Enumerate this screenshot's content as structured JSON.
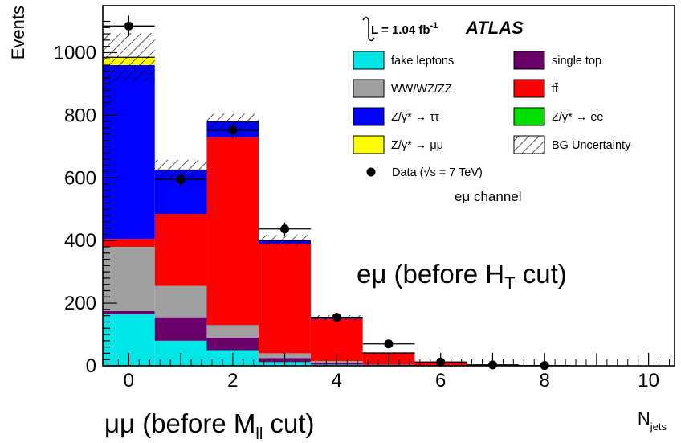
{
  "chart_data": {
    "type": "bar",
    "stacked": true,
    "x": [
      0,
      1,
      2,
      3,
      4,
      5,
      6,
      7,
      8,
      9,
      10
    ],
    "xlim": [
      -0.5,
      10.5
    ],
    "ylim": [
      0,
      1150
    ],
    "xticks": [
      "0",
      "2",
      "4",
      "6",
      "8",
      "10"
    ],
    "yticks": [
      "0",
      "200",
      "400",
      "600",
      "800",
      "1000"
    ],
    "xlabel": "N_jets",
    "ylabel": "Events",
    "series": [
      {
        "name": "fake leptons",
        "color": "#00e5e5",
        "values": [
          165,
          80,
          50,
          12,
          4,
          2,
          1,
          0,
          0,
          0,
          0
        ]
      },
      {
        "name": "single top",
        "color": "#6a006a",
        "values": [
          10,
          75,
          40,
          13,
          6,
          2,
          1,
          0,
          0,
          0,
          0
        ]
      },
      {
        "name": "WW/WZ/ZZ",
        "color": "#a0a0a0",
        "values": [
          205,
          100,
          40,
          15,
          5,
          1,
          0,
          0,
          0,
          0,
          0
        ]
      },
      {
        "name": "tt̄",
        "color": "#ff0000",
        "values": [
          25,
          230,
          600,
          350,
          135,
          35,
          10,
          2,
          0,
          0,
          0
        ]
      },
      {
        "name": "Z/γ* → ee",
        "color": "#00dd00",
        "values": [
          0,
          0,
          0,
          0,
          0,
          0,
          0,
          0,
          0,
          0,
          0
        ]
      },
      {
        "name": "Z/γ* → ττ",
        "color": "#0000ff",
        "values": [
          555,
          140,
          50,
          10,
          3,
          1,
          0,
          0,
          0,
          0,
          0
        ]
      },
      {
        "name": "Z/γ* → μμ",
        "color": "#ffff00",
        "values": [
          25,
          0,
          0,
          0,
          0,
          0,
          0,
          0,
          0,
          0,
          0
        ]
      }
    ],
    "bg_uncertainty": [
      155,
      65,
      50,
      35,
      18,
      5,
      2,
      1,
      0,
      0,
      0
    ],
    "data": {
      "name": "Data (√s = 7 TeV)",
      "x": [
        0,
        1,
        2,
        3,
        4,
        5,
        6,
        7,
        8
      ],
      "y": [
        1085,
        595,
        752,
        437,
        155,
        70,
        12,
        3,
        1
      ]
    },
    "legend": {
      "lumi": "L = 1.04 fb",
      "lumi_sup": "-1",
      "experiment": "ATLAS",
      "left": [
        {
          "label": "fake leptons",
          "color": "#00e5e5"
        },
        {
          "label": "WW/WZ/ZZ",
          "color": "#a0a0a0"
        },
        {
          "label": "Z/γ* → ττ",
          "color": "#0000ff"
        },
        {
          "label": "Z/γ* →  μμ",
          "color": "#ffff00"
        }
      ],
      "right": [
        {
          "label": "single top",
          "color": "#6a006a"
        },
        {
          "label": "tt̄",
          "color": "#ff0000"
        },
        {
          "label": "Z/γ* → ee",
          "color": "#00dd00"
        },
        {
          "label": "BG Uncertainty",
          "color": "hatch"
        }
      ],
      "data_label": "Data (√s = 7 TeV)",
      "channel": "eμ channel"
    },
    "annotations": {
      "emu_prefix": "eμ (before H",
      "emu_sub": "T",
      "emu_suffix": " cut)",
      "mumu_prefix": "μμ (before M",
      "mumu_sub": "ll",
      "mumu_suffix": " cut)"
    },
    "labels": {
      "xlabel_main": "N",
      "xlabel_sub": "jets",
      "ylabel": "Events"
    }
  }
}
